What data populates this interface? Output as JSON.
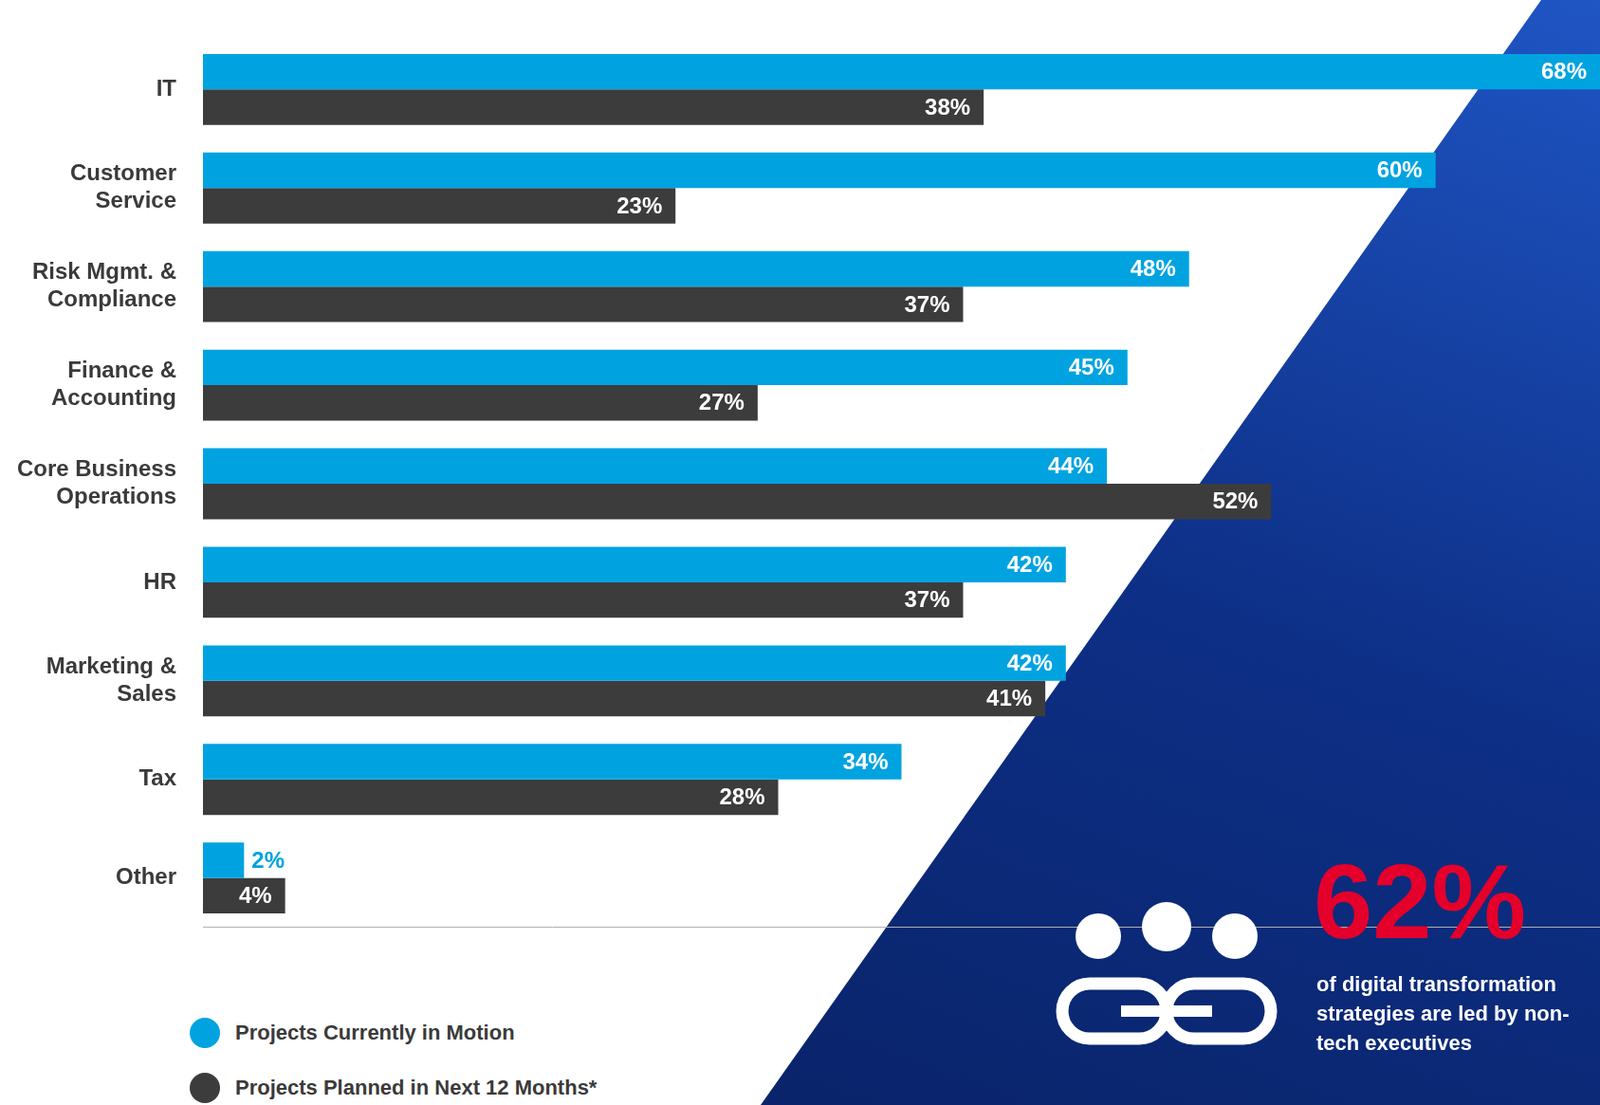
{
  "chart_data": {
    "type": "bar",
    "orientation": "horizontal",
    "categories": [
      "IT",
      "Customer Service",
      "Risk Mgmt. & Compliance",
      "Finance & Accounting",
      "Core Business Operations",
      "HR",
      "Marketing & Sales",
      "Tax",
      "Other"
    ],
    "series": [
      {
        "name": "Projects Currently in Motion",
        "color": "#00a3e0",
        "values": [
          68,
          60,
          48,
          45,
          44,
          42,
          42,
          34,
          2
        ],
        "value_labels": [
          "68%",
          "60%",
          "48%",
          "45%",
          "44%",
          "42%",
          "42%",
          "34%",
          "2%"
        ]
      },
      {
        "name": "Projects Planned in Next 12 Months*",
        "color": "#3c3c3c",
        "values": [
          38,
          23,
          37,
          27,
          52,
          37,
          41,
          28,
          4
        ],
        "value_labels": [
          "38%",
          "23%",
          "37%",
          "27%",
          "52%",
          "37%",
          "41%",
          "28%",
          "4%"
        ]
      }
    ],
    "xlim": [
      0,
      68
    ],
    "grid": false,
    "legend": "lower left",
    "data_labels": true,
    "tick_labels": "y",
    "annotations": [
      {
        "title": "62%",
        "text": "of digital transformation strategies are led by non-tech executives"
      }
    ]
  }
}
